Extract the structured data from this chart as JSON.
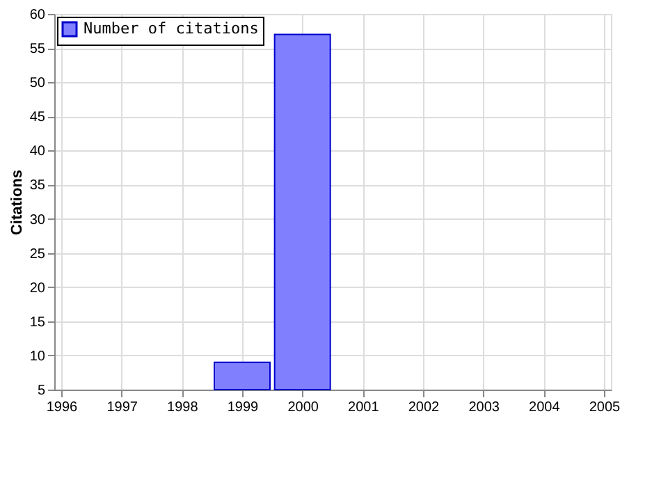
{
  "chart_data": {
    "type": "bar",
    "ylabel": "Citations",
    "x": [
      1999,
      2000
    ],
    "series": [
      {
        "name": "Number of citations",
        "color": "#8080ff",
        "values": [
          9,
          57
        ]
      }
    ],
    "xlim": [
      1996,
      2005
    ],
    "xticks": [
      1996,
      1997,
      1998,
      1999,
      2000,
      2001,
      2002,
      2003,
      2004,
      2005
    ],
    "ylim": [
      5,
      60
    ],
    "yticks": [
      5,
      10,
      15,
      20,
      25,
      30,
      35,
      40,
      45,
      50,
      55,
      60
    ],
    "grid": true,
    "legend": "top left"
  }
}
